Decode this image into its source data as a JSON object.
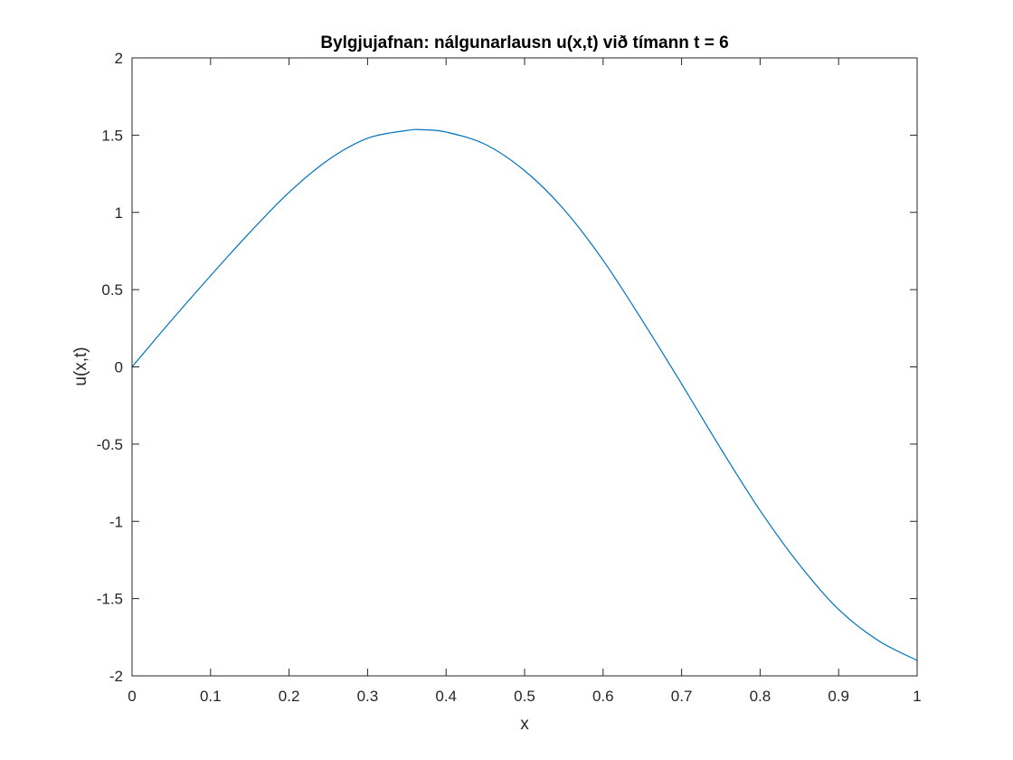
{
  "chart_data": {
    "type": "line",
    "title": "Bylgjujafnan: nálgunarlausn u(x,t) við tímann t = 6",
    "xlabel": "x",
    "ylabel": "u(x,t)",
    "xlim": [
      0,
      1
    ],
    "ylim": [
      -2,
      2
    ],
    "x_ticks": [
      0,
      0.1,
      0.2,
      0.3,
      0.4,
      0.5,
      0.6,
      0.7,
      0.8,
      0.9,
      1
    ],
    "x_tick_labels": [
      "0",
      "0.1",
      "0.2",
      "0.3",
      "0.4",
      "0.5",
      "0.6",
      "0.7",
      "0.8",
      "0.9",
      "1"
    ],
    "y_ticks": [
      2,
      1.5,
      1,
      0.5,
      0,
      -0.5,
      -1,
      -1.5,
      -2
    ],
    "y_tick_labels": [
      "2",
      "1.5",
      "1",
      "0.5",
      "0",
      "-0.5",
      "-1",
      "-1.5",
      "-2"
    ],
    "grid": false,
    "line_color": "#0072BD",
    "series": [
      {
        "x": [
          0,
          0.05,
          0.1,
          0.15,
          0.2,
          0.25,
          0.3,
          0.35,
          0.37,
          0.4,
          0.45,
          0.5,
          0.55,
          0.6,
          0.65,
          0.7,
          0.75,
          0.8,
          0.85,
          0.9,
          0.95,
          1
        ],
        "values": [
          0,
          0.3,
          0.59,
          0.87,
          1.13,
          1.34,
          1.48,
          1.53,
          1.535,
          1.52,
          1.44,
          1.27,
          1.02,
          0.69,
          0.3,
          -0.11,
          -0.53,
          -0.93,
          -1.28,
          -1.57,
          -1.77,
          -1.9
        ]
      }
    ]
  }
}
